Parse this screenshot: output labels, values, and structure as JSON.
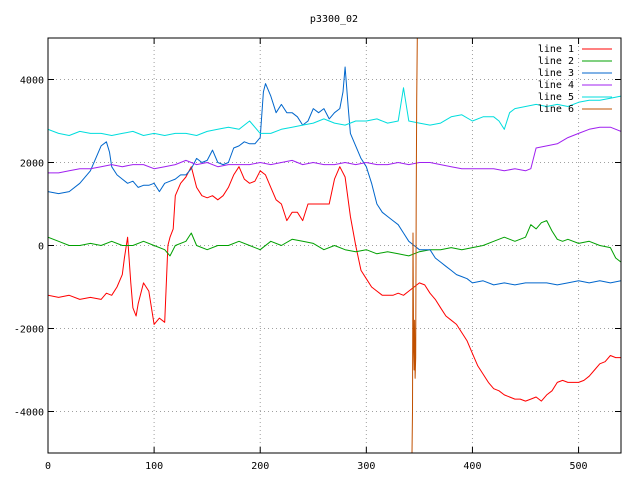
{
  "chart_data": {
    "type": "line",
    "title": "p3300_02",
    "xlabel": "",
    "ylabel": "",
    "xlim": [
      0,
      540
    ],
    "ylim": [
      -5000,
      5000
    ],
    "xticks": [
      0,
      100,
      200,
      300,
      400,
      500
    ],
    "yticks": [
      4000,
      2000,
      0,
      -2000,
      -4000
    ],
    "xtick_labels": [
      "0",
      "100",
      "200",
      "300",
      "400",
      "500"
    ],
    "ytick_labels": [
      "4000",
      "2000",
      "0",
      "-2000",
      "-4000"
    ],
    "grid": true,
    "legend_position": "top-right",
    "series": [
      {
        "name": "line 1",
        "color": "#ff0000",
        "x": [
          0,
          10,
          20,
          30,
          40,
          50,
          55,
          60,
          65,
          70,
          72,
          75,
          78,
          80,
          83,
          85,
          90,
          95,
          100,
          105,
          110,
          113,
          115,
          118,
          120,
          125,
          130,
          135,
          140,
          145,
          150,
          155,
          160,
          165,
          170,
          175,
          180,
          185,
          190,
          195,
          200,
          205,
          210,
          215,
          220,
          225,
          230,
          235,
          240,
          245,
          250,
          255,
          260,
          265,
          270,
          275,
          280,
          285,
          290,
          295,
          300,
          305,
          310,
          315,
          320,
          325,
          330,
          335,
          340,
          345,
          350,
          355,
          360,
          365,
          370,
          375,
          380,
          385,
          390,
          395,
          400,
          405,
          410,
          415,
          420,
          425,
          430,
          435,
          440,
          445,
          450,
          455,
          460,
          465,
          470,
          475,
          480,
          485,
          490,
          495,
          500,
          505,
          510,
          515,
          520,
          525,
          530,
          535,
          540
        ],
        "y": [
          -1200,
          -1250,
          -1200,
          -1300,
          -1250,
          -1300,
          -1150,
          -1200,
          -1000,
          -700,
          -300,
          200,
          -900,
          -1500,
          -1700,
          -1400,
          -900,
          -1100,
          -1900,
          -1750,
          -1850,
          0,
          200,
          400,
          1200,
          1500,
          1650,
          1900,
          1400,
          1200,
          1150,
          1200,
          1100,
          1200,
          1400,
          1700,
          1900,
          1600,
          1500,
          1550,
          1800,
          1700,
          1400,
          1100,
          1000,
          600,
          800,
          800,
          600,
          1000,
          1000,
          1000,
          1000,
          1000,
          1600,
          1900,
          1650,
          700,
          0,
          -600,
          -800,
          -1000,
          -1100,
          -1200,
          -1200,
          -1200,
          -1150,
          -1200,
          -1100,
          -1000,
          -900,
          -950,
          -1150,
          -1300,
          -1500,
          -1700,
          -1800,
          -1900,
          -2100,
          -2300,
          -2600,
          -2900,
          -3100,
          -3300,
          -3450,
          -3500,
          -3600,
          -3650,
          -3700,
          -3700,
          -3750,
          -3700,
          -3650,
          -3750,
          -3600,
          -3500,
          -3300,
          -3250,
          -3300,
          -3300,
          -3300,
          -3250,
          -3150,
          -3000,
          -2850,
          -2800,
          -2650,
          -2700,
          -2700
        ]
      },
      {
        "name": "line 2",
        "color": "#00a000",
        "x": [
          0,
          10,
          20,
          30,
          40,
          50,
          60,
          70,
          80,
          90,
          100,
          110,
          115,
          120,
          130,
          135,
          140,
          150,
          160,
          170,
          180,
          190,
          200,
          210,
          220,
          230,
          240,
          250,
          260,
          270,
          280,
          290,
          300,
          310,
          320,
          330,
          340,
          350,
          360,
          370,
          380,
          390,
          400,
          410,
          420,
          430,
          440,
          450,
          455,
          460,
          465,
          470,
          475,
          480,
          485,
          490,
          500,
          510,
          520,
          530,
          535,
          540
        ],
        "y": [
          200,
          100,
          0,
          0,
          50,
          0,
          100,
          0,
          0,
          100,
          0,
          -100,
          -250,
          0,
          100,
          300,
          0,
          -100,
          0,
          0,
          100,
          0,
          -100,
          100,
          0,
          150,
          100,
          50,
          -100,
          0,
          -100,
          -150,
          -100,
          -200,
          -150,
          -200,
          -250,
          -150,
          -100,
          -100,
          -50,
          -100,
          -50,
          0,
          100,
          200,
          100,
          200,
          500,
          400,
          550,
          600,
          350,
          150,
          100,
          150,
          50,
          100,
          0,
          -50,
          -300,
          -400
        ]
      },
      {
        "name": "line 3",
        "color": "#0066cc",
        "x": [
          0,
          10,
          20,
          30,
          40,
          50,
          55,
          58,
          60,
          65,
          70,
          75,
          80,
          85,
          90,
          95,
          100,
          105,
          110,
          115,
          120,
          125,
          130,
          135,
          140,
          145,
          150,
          155,
          160,
          165,
          170,
          175,
          180,
          185,
          190,
          195,
          200,
          203,
          205,
          210,
          215,
          220,
          225,
          230,
          235,
          240,
          245,
          250,
          255,
          260,
          265,
          270,
          275,
          278,
          280,
          283,
          285,
          290,
          295,
          300,
          305,
          310,
          315,
          320,
          325,
          330,
          335,
          340,
          345,
          350,
          355,
          360,
          365,
          370,
          375,
          380,
          385,
          390,
          395,
          400,
          410,
          420,
          430,
          440,
          450,
          460,
          470,
          480,
          490,
          500,
          510,
          520,
          530,
          540
        ],
        "y": [
          1300,
          1250,
          1300,
          1500,
          1800,
          2400,
          2500,
          2250,
          1900,
          1700,
          1600,
          1500,
          1550,
          1400,
          1450,
          1450,
          1500,
          1300,
          1500,
          1550,
          1600,
          1700,
          1700,
          1850,
          2100,
          2000,
          2050,
          2300,
          2000,
          1950,
          2000,
          2350,
          2400,
          2500,
          2450,
          2450,
          2600,
          3700,
          3900,
          3600,
          3200,
          3400,
          3200,
          3200,
          3100,
          2900,
          3000,
          3300,
          3200,
          3300,
          3050,
          3200,
          3300,
          3700,
          4300,
          3300,
          2700,
          2400,
          2100,
          1900,
          1500,
          1000,
          800,
          700,
          600,
          500,
          300,
          100,
          0,
          -100,
          -100,
          -100,
          -300,
          -400,
          -500,
          -600,
          -700,
          -750,
          -800,
          -900,
          -850,
          -950,
          -900,
          -950,
          -900,
          -900,
          -900,
          -950,
          -900,
          -850,
          -900,
          -850,
          -900,
          -850
        ]
      },
      {
        "name": "line 4",
        "color": "#a020f0",
        "x": [
          0,
          10,
          20,
          30,
          40,
          50,
          60,
          70,
          80,
          90,
          100,
          110,
          120,
          130,
          140,
          150,
          160,
          170,
          180,
          190,
          200,
          210,
          220,
          230,
          240,
          250,
          260,
          270,
          280,
          290,
          300,
          310,
          320,
          330,
          340,
          350,
          360,
          370,
          380,
          390,
          400,
          410,
          420,
          430,
          440,
          450,
          455,
          460,
          470,
          480,
          490,
          500,
          510,
          520,
          530,
          540
        ],
        "y": [
          1750,
          1750,
          1800,
          1850,
          1850,
          1900,
          1950,
          1900,
          1950,
          1950,
          1850,
          1900,
          1950,
          2050,
          1950,
          2000,
          1900,
          1950,
          1950,
          1950,
          2000,
          1950,
          2000,
          2050,
          1950,
          2000,
          1950,
          1950,
          2000,
          1950,
          2000,
          1950,
          1950,
          2000,
          1950,
          2000,
          2000,
          1950,
          1900,
          1850,
          1850,
          1850,
          1850,
          1800,
          1850,
          1800,
          1850,
          2350,
          2400,
          2450,
          2600,
          2700,
          2800,
          2850,
          2850,
          2750
        ]
      },
      {
        "name": "line 5",
        "color": "#00dddd",
        "x": [
          0,
          10,
          20,
          30,
          40,
          50,
          60,
          70,
          80,
          90,
          100,
          110,
          120,
          130,
          140,
          150,
          160,
          170,
          180,
          190,
          200,
          210,
          220,
          230,
          240,
          250,
          260,
          270,
          280,
          290,
          300,
          310,
          320,
          330,
          335,
          340,
          350,
          360,
          370,
          380,
          390,
          400,
          410,
          420,
          425,
          430,
          435,
          440,
          450,
          460,
          470,
          480,
          490,
          500,
          510,
          520,
          530,
          540
        ],
        "y": [
          2800,
          2700,
          2650,
          2750,
          2700,
          2700,
          2650,
          2700,
          2750,
          2650,
          2700,
          2650,
          2700,
          2700,
          2650,
          2750,
          2800,
          2850,
          2800,
          3000,
          2700,
          2700,
          2800,
          2850,
          2900,
          2950,
          3050,
          2950,
          2900,
          3000,
          3000,
          3050,
          2950,
          3000,
          3800,
          3000,
          2950,
          2900,
          2950,
          3100,
          3150,
          3000,
          3100,
          3100,
          3000,
          2800,
          3200,
          3300,
          3350,
          3400,
          3350,
          3400,
          3350,
          3450,
          3500,
          3500,
          3550,
          3600
        ]
      },
      {
        "name": "line 6",
        "color": "#c05000",
        "x": [
          343,
          343.5,
          344,
          344.5,
          345,
          345.5,
          346,
          346.5,
          347,
          347.5,
          348,
          348.5,
          349
        ],
        "y": [
          -5000,
          -4000,
          300,
          -2500,
          -3000,
          -1800,
          -3200,
          -2700,
          1000,
          3500,
          5000,
          5000,
          5000
        ]
      }
    ]
  }
}
